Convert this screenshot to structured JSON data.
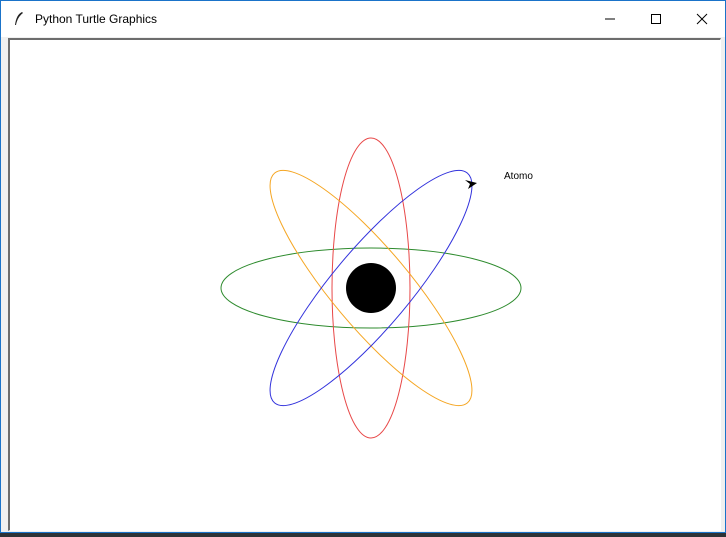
{
  "window": {
    "title": "Python Turtle Graphics",
    "controls": {
      "minimize": "minimize",
      "maximize": "maximize",
      "close": "close"
    }
  },
  "canvas": {
    "label": "Atomo",
    "colors": {
      "nucleus": "#000000",
      "orbit_green": "#2e8b2e",
      "orbit_red": "#e84848",
      "orbit_orange": "#f5a623",
      "orbit_blue": "#3232dc",
      "turtle": "#000000"
    }
  }
}
